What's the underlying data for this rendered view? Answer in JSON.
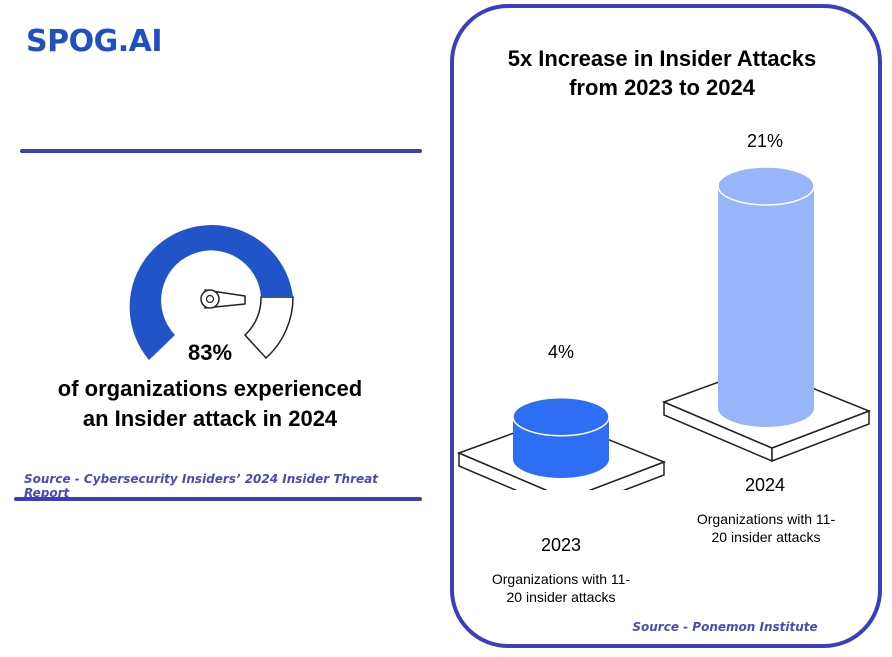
{
  "brand": {
    "logo_text": "SPOG.AI",
    "brand_color": "#1f4fc1",
    "accent_color": "#3b3fbf"
  },
  "gauge": {
    "value_label": "83%",
    "value": 83,
    "text_line1": "of organizations experienced",
    "text_line2": "an Insider attack in 2024",
    "source": "Source - Cybersecurity Insiders’ 2024 Insider Threat Report",
    "fill_color": "#2254c9"
  },
  "chart_data": {
    "type": "bar",
    "title_line1": "5x Increase in Insider Attacks",
    "title_line2": "from 2023 to 2024",
    "categories": [
      "2023",
      "2024"
    ],
    "values": [
      4,
      21
    ],
    "value_labels": [
      "4%",
      "21%"
    ],
    "descriptions": [
      [
        "Organizations with 11-",
        "20 insider attacks"
      ],
      [
        "Organizations with 11-",
        "20 insider attacks"
      ]
    ],
    "colors": [
      "#2e6ef5",
      "#99b5fa"
    ],
    "source": "Source - Ponemon Institute"
  }
}
